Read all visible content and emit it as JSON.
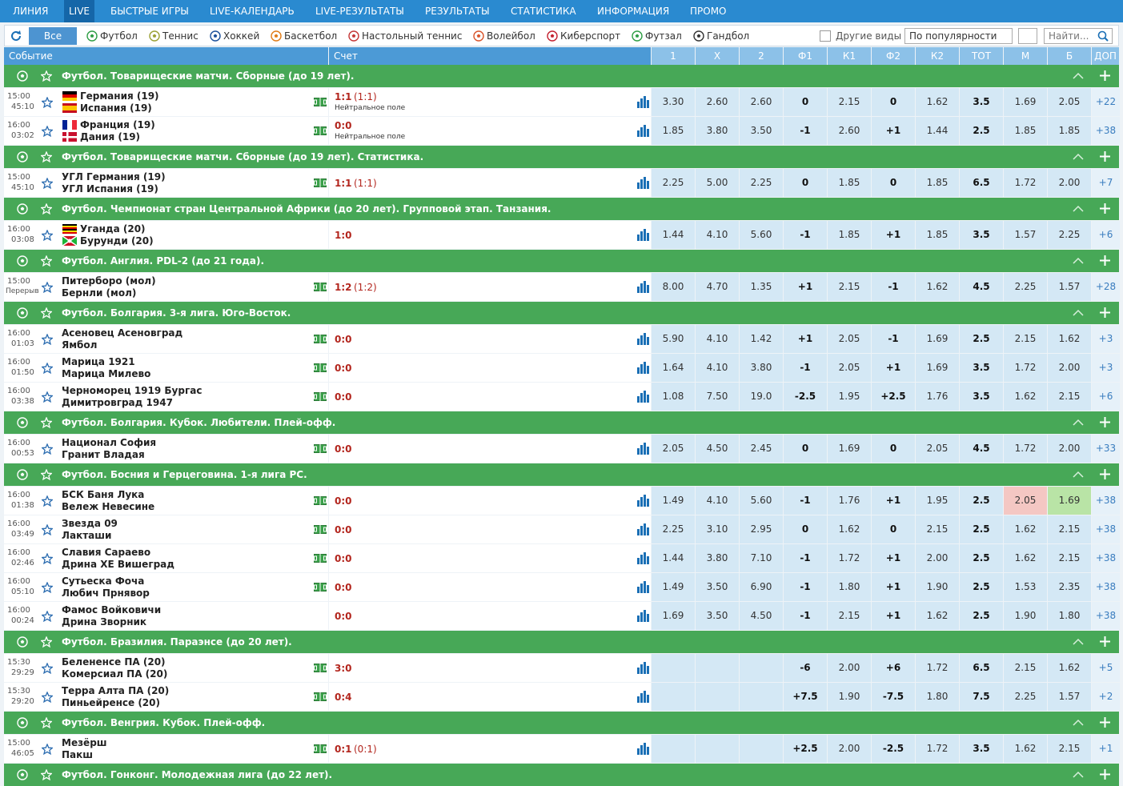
{
  "nav": [
    "ЛИНИЯ",
    "LIVE",
    "БЫСТРЫЕ ИГРЫ",
    "LIVE-КАЛЕНДАРЬ",
    "LIVE-РЕЗУЛЬТАТЫ",
    "РЕЗУЛЬТАТЫ",
    "СТАТИСТИКА",
    "ИНФОРМАЦИЯ",
    "ПРОМО"
  ],
  "nav_active": 1,
  "sports": [
    "Все",
    "Футбол",
    "Теннис",
    "Хоккей",
    "Баскетбол",
    "Настольный теннис",
    "Волейбол",
    "Киберспорт",
    "Футзал",
    "Гандбол"
  ],
  "sports_active": 0,
  "other_sports": "Другие виды",
  "sort": "По популярности",
  "search_placeholder": "Найти...",
  "columns": {
    "event": "Событие",
    "score": "Счет",
    "odds": [
      "1",
      "X",
      "2",
      "Ф1",
      "К1",
      "Ф2",
      "К2",
      "ТОТ",
      "М",
      "Б"
    ],
    "extra": "ДОП"
  },
  "groups": [
    {
      "title": "Футбол. Товарищеские матчи. Сборные (до 19 лет).",
      "matches": [
        {
          "time": "15:00",
          "minute": "45:10",
          "teams": [
            "Германия (19)",
            "Испания (19)"
          ],
          "flags": [
            "de",
            "es"
          ],
          "tracker": true,
          "score": "1:1",
          "score_extra": "(1:1)",
          "note": "Нейтральное поле",
          "odds": [
            "3.30",
            "2.60",
            "2.60",
            "0",
            "2.15",
            "0",
            "1.62",
            "3.5",
            "1.69",
            "2.05"
          ],
          "extra": "+22"
        },
        {
          "time": "16:00",
          "minute": "03:02",
          "teams": [
            "Франция (19)",
            "Дания (19)"
          ],
          "flags": [
            "fr",
            "dk"
          ],
          "tracker": true,
          "score": "0:0",
          "note": "Нейтральное поле",
          "odds": [
            "1.85",
            "3.80",
            "3.50",
            "-1",
            "2.60",
            "+1",
            "1.44",
            "2.5",
            "1.85",
            "1.85"
          ],
          "extra": "+38"
        }
      ]
    },
    {
      "title": "Футбол. Товарищеские матчи. Сборные (до 19 лет). Статистика.",
      "matches": [
        {
          "time": "15:00",
          "minute": "45:10",
          "teams": [
            "УГЛ Германия (19)",
            "УГЛ Испания (19)"
          ],
          "tracker": true,
          "score": "1:1",
          "score_extra": "(1:1)",
          "odds": [
            "2.25",
            "5.00",
            "2.25",
            "0",
            "1.85",
            "0",
            "1.85",
            "6.5",
            "1.72",
            "2.00"
          ],
          "extra": "+7"
        }
      ]
    },
    {
      "title": "Футбол. Чемпионат стран Центральной Африки (до 20 лет). Групповой этап. Танзания.",
      "matches": [
        {
          "time": "16:00",
          "minute": "03:08",
          "teams": [
            "Уганда (20)",
            "Бурунди (20)"
          ],
          "flags": [
            "ug",
            "bi"
          ],
          "tracker": false,
          "score": "1:0",
          "odds": [
            "1.44",
            "4.10",
            "5.60",
            "-1",
            "1.85",
            "+1",
            "1.85",
            "3.5",
            "1.57",
            "2.25"
          ],
          "extra": "+6"
        }
      ]
    },
    {
      "title": "Футбол. Англия. PDL-2 (до 21 года).",
      "matches": [
        {
          "time": "15:00",
          "minute": "Перерыв",
          "teams": [
            "Питерборо (мол)",
            "Бернли (мол)"
          ],
          "tracker": true,
          "score": "1:2",
          "score_extra": "(1:2)",
          "odds": [
            "8.00",
            "4.70",
            "1.35",
            "+1",
            "2.15",
            "-1",
            "1.62",
            "4.5",
            "2.25",
            "1.57"
          ],
          "extra": "+28"
        }
      ]
    },
    {
      "title": "Футбол. Болгария. 3-я лига. Юго-Восток.",
      "matches": [
        {
          "time": "16:00",
          "minute": "01:03",
          "teams": [
            "Асеновец Асеновград",
            "Ямбол"
          ],
          "tracker": true,
          "score": "0:0",
          "odds": [
            "5.90",
            "4.10",
            "1.42",
            "+1",
            "2.05",
            "-1",
            "1.69",
            "2.5",
            "2.15",
            "1.62"
          ],
          "extra": "+3"
        },
        {
          "time": "16:00",
          "minute": "01:50",
          "teams": [
            "Марица 1921",
            "Марица Милево"
          ],
          "tracker": true,
          "score": "0:0",
          "odds": [
            "1.64",
            "4.10",
            "3.80",
            "-1",
            "2.05",
            "+1",
            "1.69",
            "3.5",
            "1.72",
            "2.00"
          ],
          "extra": "+3"
        },
        {
          "time": "16:00",
          "minute": "03:38",
          "teams": [
            "Черноморец 1919 Бургас",
            "Димитровград 1947"
          ],
          "tracker": true,
          "score": "0:0",
          "odds": [
            "1.08",
            "7.50",
            "19.0",
            "-2.5",
            "1.95",
            "+2.5",
            "1.76",
            "3.5",
            "1.62",
            "2.15"
          ],
          "extra": "+6"
        }
      ]
    },
    {
      "title": "Футбол. Болгария. Кубок. Любители. Плей-офф.",
      "matches": [
        {
          "time": "16:00",
          "minute": "00:53",
          "teams": [
            "Национал София",
            "Гранит Владая"
          ],
          "tracker": true,
          "score": "0:0",
          "odds": [
            "2.05",
            "4.50",
            "2.45",
            "0",
            "1.69",
            "0",
            "2.05",
            "4.5",
            "1.72",
            "2.00"
          ],
          "extra": "+33"
        }
      ]
    },
    {
      "title": "Футбол. Босния и Герцеговина. 1-я лига РС.",
      "matches": [
        {
          "time": "16:00",
          "minute": "01:38",
          "teams": [
            "БСК Баня Лука",
            "Вележ Невесине"
          ],
          "tracker": true,
          "score": "0:0",
          "odds": [
            "1.49",
            "4.10",
            "5.60",
            "-1",
            "1.76",
            "+1",
            "1.95",
            "2.5",
            "2.05",
            "1.69"
          ],
          "extra": "+38",
          "odds_down": [
            8
          ],
          "odds_up": [
            9
          ]
        },
        {
          "time": "16:00",
          "minute": "03:49",
          "teams": [
            "Звезда 09",
            "Лакташи"
          ],
          "tracker": true,
          "score": "0:0",
          "odds": [
            "2.25",
            "3.10",
            "2.95",
            "0",
            "1.62",
            "0",
            "2.15",
            "2.5",
            "1.62",
            "2.15"
          ],
          "extra": "+38"
        },
        {
          "time": "16:00",
          "minute": "02:46",
          "teams": [
            "Славия Сараево",
            "Дрина ХЕ Вишеград"
          ],
          "tracker": true,
          "score": "0:0",
          "odds": [
            "1.44",
            "3.80",
            "7.10",
            "-1",
            "1.72",
            "+1",
            "2.00",
            "2.5",
            "1.62",
            "2.15"
          ],
          "extra": "+38"
        },
        {
          "time": "16:00",
          "minute": "05:10",
          "teams": [
            "Сутьеска Фоча",
            "Любич Прнявор"
          ],
          "tracker": true,
          "score": "0:0",
          "odds": [
            "1.49",
            "3.50",
            "6.90",
            "-1",
            "1.80",
            "+1",
            "1.90",
            "2.5",
            "1.53",
            "2.35"
          ],
          "extra": "+38"
        },
        {
          "time": "16:00",
          "minute": "00:24",
          "teams": [
            "Фамос Войковичи",
            "Дрина Зворник"
          ],
          "tracker": false,
          "score": "0:0",
          "odds": [
            "1.69",
            "3.50",
            "4.50",
            "-1",
            "2.15",
            "+1",
            "1.62",
            "2.5",
            "1.90",
            "1.80"
          ],
          "extra": "+38"
        }
      ]
    },
    {
      "title": "Футбол. Бразилия. Параэнсе (до 20 лет).",
      "matches": [
        {
          "time": "15:30",
          "minute": "29:29",
          "teams": [
            "Белененсе ПА (20)",
            "Комерсиал ПА (20)"
          ],
          "tracker": true,
          "score": "3:0",
          "odds": [
            null,
            null,
            null,
            "-6",
            "2.00",
            "+6",
            "1.72",
            "6.5",
            "2.15",
            "1.62"
          ],
          "extra": "+5"
        },
        {
          "time": "15:30",
          "minute": "29:20",
          "teams": [
            "Терра Алта ПА (20)",
            "Пиньейренсе (20)"
          ],
          "tracker": true,
          "score": "0:4",
          "odds": [
            null,
            null,
            null,
            "+7.5",
            "1.90",
            "-7.5",
            "1.80",
            "7.5",
            "2.25",
            "1.57"
          ],
          "extra": "+2"
        }
      ]
    },
    {
      "title": "Футбол. Венгрия. Кубок. Плей-офф.",
      "matches": [
        {
          "time": "15:00",
          "minute": "46:05",
          "teams": [
            "Мезёрш",
            "Пакш"
          ],
          "tracker": true,
          "score": "0:1",
          "score_extra": "(0:1)",
          "odds": [
            null,
            null,
            null,
            "+2.5",
            "2.00",
            "-2.5",
            "1.72",
            "3.5",
            "1.62",
            "2.15"
          ],
          "extra": "+1"
        }
      ]
    },
    {
      "title": "Футбол. Гонконг. Молодежная лига (до 22 лет).",
      "matches": []
    }
  ]
}
